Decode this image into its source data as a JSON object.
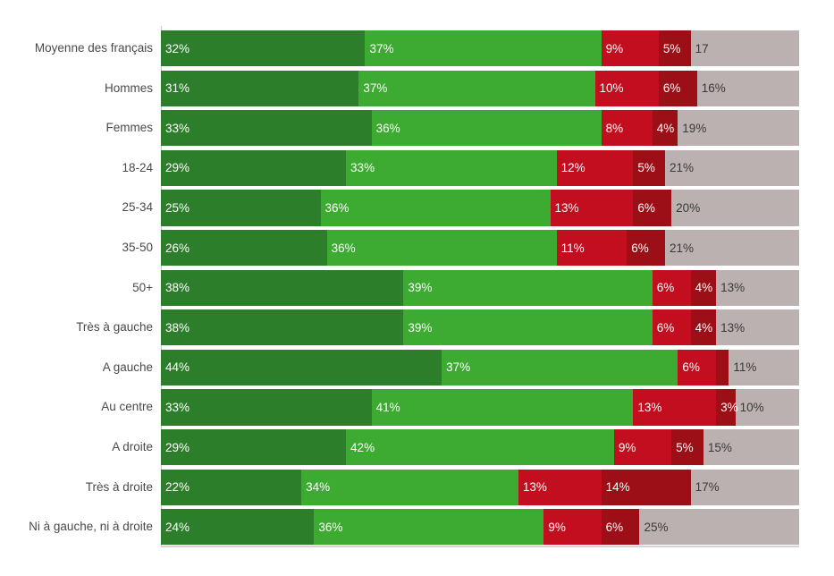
{
  "chart": {
    "title": "",
    "legend": "none",
    "axis_line_color": "#c9c9c9",
    "bottom_line_color": "#d8d2d2",
    "category_label_color": "#4a4a4a",
    "background_color": "#ffffff"
  },
  "chart_data": {
    "type": "bar",
    "orientation": "horizontal",
    "stacked": true,
    "unit": "percent",
    "x_range": [
      0,
      100
    ],
    "grid": false,
    "legend_position": "none",
    "title": "",
    "xlabel": "",
    "ylabel": "",
    "categories": [
      "Moyenne des français",
      "Hommes",
      "Femmes",
      "18-24",
      "25-34",
      "35-50",
      "50+",
      "Très à gauche",
      "A gauche",
      "Au centre",
      "A droite",
      "Très à droite",
      "Ni à gauche, ni à droite"
    ],
    "series": [
      {
        "name": "dark-green",
        "color": "#2d7e2b",
        "label_color": "#ffffff",
        "values": [
          32,
          31,
          33,
          29,
          25,
          26,
          38,
          38,
          44,
          33,
          29,
          22,
          24
        ]
      },
      {
        "name": "light-green",
        "color": "#3dab32",
        "label_color": "#ffffff",
        "values": [
          37,
          37,
          36,
          33,
          36,
          36,
          39,
          39,
          37,
          41,
          42,
          34,
          36
        ]
      },
      {
        "name": "red",
        "color": "#c30e1f",
        "label_color": "#ffffff",
        "values": [
          9,
          10,
          8,
          12,
          13,
          11,
          6,
          6,
          6,
          13,
          9,
          13,
          9
        ]
      },
      {
        "name": "dark-red",
        "color": "#9c0f16",
        "label_color": "#ffffff",
        "values": [
          5,
          6,
          4,
          5,
          6,
          6,
          4,
          4,
          2,
          3,
          5,
          14,
          6
        ]
      },
      {
        "name": "gray",
        "color": "#bcb1b1",
        "label_color": "#3a3a3a",
        "values": [
          17,
          16,
          19,
          21,
          20,
          21,
          13,
          13,
          11,
          10,
          15,
          17,
          25
        ]
      }
    ],
    "segment_labels": [
      [
        "32%",
        "37%",
        "9%",
        "5%",
        "17"
      ],
      [
        "31%",
        "37%",
        "10%",
        "6%",
        "16%"
      ],
      [
        "33%",
        "36%",
        "8%",
        "4%",
        "19%"
      ],
      [
        "29%",
        "33%",
        "12%",
        "5%",
        "21%"
      ],
      [
        "25%",
        "36%",
        "13%",
        "6%",
        "20%"
      ],
      [
        "26%",
        "36%",
        "11%",
        "6%",
        "21%"
      ],
      [
        "38%",
        "39%",
        "6%",
        "4%",
        "13%"
      ],
      [
        "38%",
        "39%",
        "6%",
        "4%",
        "13%"
      ],
      [
        "44%",
        "37%",
        "6%",
        "",
        "11%"
      ],
      [
        "33%",
        "41%",
        "13%",
        "3%",
        "10%"
      ],
      [
        "29%",
        "42%",
        "9%",
        "5%",
        "15%"
      ],
      [
        "22%",
        "34%",
        "13%",
        "14%",
        "17%"
      ],
      [
        "24%",
        "36%",
        "9%",
        "6%",
        "25%"
      ]
    ]
  }
}
